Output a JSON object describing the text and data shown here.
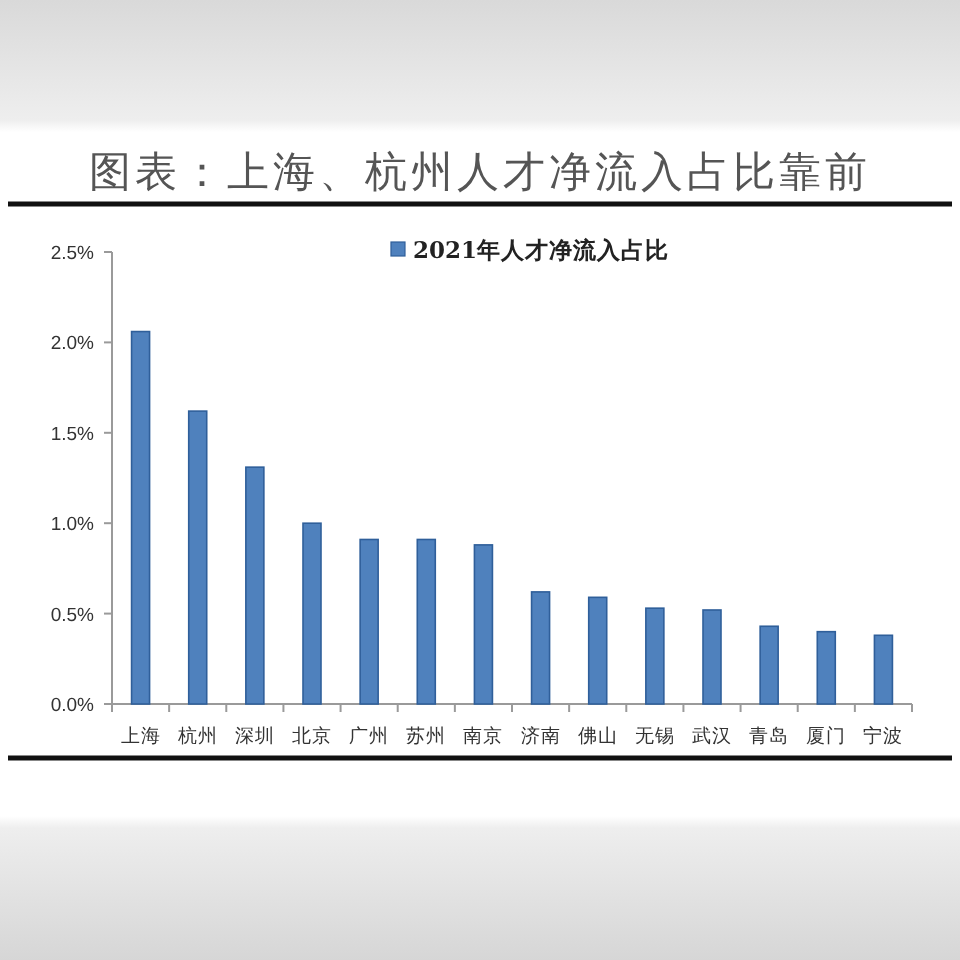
{
  "chart_data": {
    "type": "bar",
    "title": "图表：上海、杭州人才净流入占比靠前",
    "categories": [
      "上海",
      "杭州",
      "深圳",
      "北京",
      "广州",
      "苏州",
      "南京",
      "济南",
      "佛山",
      "无锡",
      "武汉",
      "青岛",
      "厦门",
      "宁波"
    ],
    "series": [
      {
        "name": "2021年人才净流入占比",
        "color": "#4f81bd",
        "values": [
          2.06,
          1.62,
          1.31,
          1.0,
          0.91,
          0.91,
          0.88,
          0.62,
          0.59,
          0.53,
          0.52,
          0.43,
          0.4,
          0.38
        ]
      }
    ],
    "ylim": [
      0,
      2.5
    ],
    "yticks": [
      {
        "value": 0,
        "label": "0.0%"
      },
      {
        "value": 0.5,
        "label": "0.5%"
      },
      {
        "value": 1,
        "label": "1.0%"
      },
      {
        "value": 1.5,
        "label": "1.5%"
      },
      {
        "value": 2,
        "label": "2.0%"
      },
      {
        "value": 2.5,
        "label": "2.5%"
      }
    ],
    "legend": "top"
  }
}
